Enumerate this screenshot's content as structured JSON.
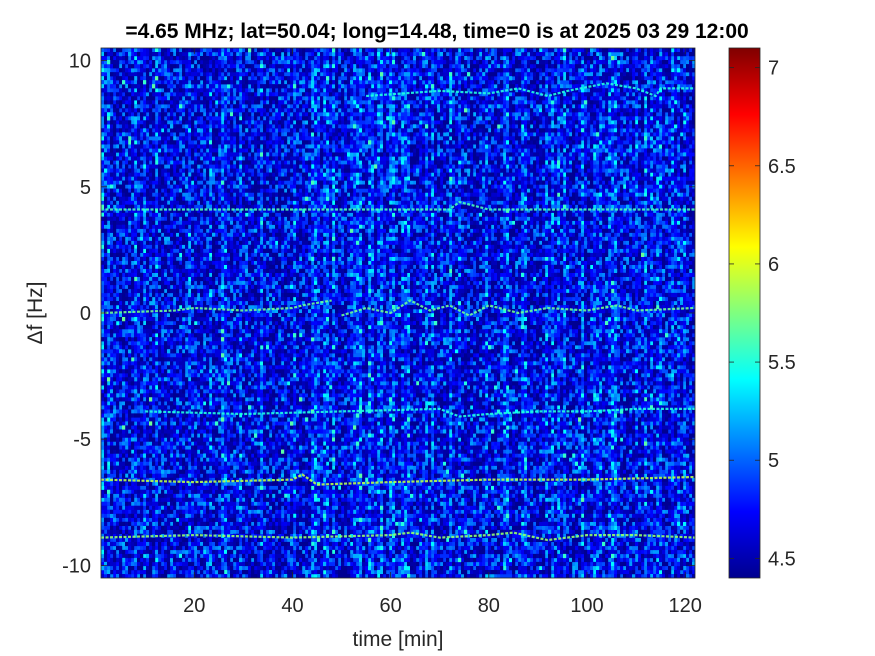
{
  "chart_data": {
    "type": "heatmap",
    "title": "=4.65 MHz;  lat=50.04; long=14.48, time=0 is at 2025 03 29 12:00",
    "xlabel": "time [min]",
    "ylabel": "Δf [Hz]",
    "xlim": [
      1,
      122
    ],
    "ylim": [
      -10.5,
      10.5
    ],
    "x_ticks": [
      {
        "value": 20,
        "label": "20"
      },
      {
        "value": 40,
        "label": "40"
      },
      {
        "value": 60,
        "label": "60"
      },
      {
        "value": 80,
        "label": "80"
      },
      {
        "value": 100,
        "label": "100"
      },
      {
        "value": 120,
        "label": "120"
      }
    ],
    "y_ticks": [
      {
        "value": 10,
        "label": "10"
      },
      {
        "value": 5,
        "label": "5"
      },
      {
        "value": 0,
        "label": "0"
      },
      {
        "value": -5,
        "label": "-5"
      },
      {
        "value": -10,
        "label": "-10"
      }
    ],
    "colorbar": {
      "colormap": "jet",
      "range": [
        4.4,
        7.1
      ],
      "ticks": [
        {
          "value": 4.5,
          "label": "4.5"
        },
        {
          "value": 5,
          "label": "5"
        },
        {
          "value": 5.5,
          "label": "5.5"
        },
        {
          "value": 6,
          "label": "6"
        },
        {
          "value": 6.5,
          "label": "6.5"
        },
        {
          "value": 7,
          "label": "7"
        }
      ]
    },
    "background_level": 4.75,
    "traces": [
      {
        "level": 5.6,
        "points": [
          [
            1,
            4.1
          ],
          [
            20,
            4.1
          ],
          [
            40,
            4.1
          ],
          [
            60,
            4.1
          ],
          [
            72,
            4.1
          ],
          [
            74,
            4.4
          ],
          [
            80,
            4.1
          ],
          [
            100,
            4.1
          ],
          [
            122,
            4.1
          ]
        ]
      },
      {
        "level": 5.5,
        "points": [
          [
            55,
            8.6
          ],
          [
            70,
            8.8
          ],
          [
            80,
            8.7
          ],
          [
            86,
            8.9
          ],
          [
            92,
            8.6
          ],
          [
            96,
            8.8
          ],
          [
            104,
            9.1
          ],
          [
            110,
            8.9
          ],
          [
            114,
            8.6
          ],
          [
            115,
            8.9
          ],
          [
            122,
            8.9
          ]
        ]
      },
      {
        "level": 5.7,
        "points": [
          [
            1,
            0
          ],
          [
            16,
            0.1
          ],
          [
            20,
            0.2
          ],
          [
            30,
            0.1
          ],
          [
            40,
            0.2
          ],
          [
            42,
            0.3
          ],
          [
            48,
            0.5
          ]
        ]
      },
      {
        "level": 5.7,
        "points": [
          [
            50,
            -0.1
          ],
          [
            55,
            0.2
          ],
          [
            60,
            0
          ],
          [
            64,
            0.5
          ],
          [
            68,
            0.1
          ],
          [
            72,
            0.3
          ],
          [
            76,
            -0.1
          ],
          [
            80,
            0.3
          ],
          [
            86,
            0
          ],
          [
            92,
            0.2
          ],
          [
            100,
            0.1
          ],
          [
            106,
            0.3
          ],
          [
            110,
            0.1
          ],
          [
            122,
            0.2
          ]
        ]
      },
      {
        "level": 5.5,
        "points": [
          [
            10,
            -3.9
          ],
          [
            30,
            -4.0
          ],
          [
            50,
            -3.9
          ],
          [
            70,
            -3.8
          ],
          [
            74,
            -4.1
          ],
          [
            80,
            -4.0
          ],
          [
            90,
            -3.9
          ],
          [
            100,
            -3.9
          ],
          [
            110,
            -3.8
          ],
          [
            122,
            -3.8
          ]
        ]
      },
      {
        "level": 5.9,
        "points": [
          [
            1,
            -6.6
          ],
          [
            20,
            -6.7
          ],
          [
            40,
            -6.6
          ],
          [
            42,
            -6.4
          ],
          [
            45,
            -6.8
          ],
          [
            60,
            -6.7
          ],
          [
            80,
            -6.6
          ],
          [
            100,
            -6.6
          ],
          [
            122,
            -6.5
          ]
        ]
      },
      {
        "level": 5.8,
        "points": [
          [
            1,
            -8.9
          ],
          [
            20,
            -8.8
          ],
          [
            40,
            -8.9
          ],
          [
            60,
            -8.8
          ],
          [
            64,
            -8.7
          ],
          [
            70,
            -8.9
          ],
          [
            80,
            -8.8
          ],
          [
            85,
            -8.7
          ],
          [
            92,
            -9.0
          ],
          [
            100,
            -8.8
          ],
          [
            110,
            -8.8
          ],
          [
            122,
            -8.9
          ]
        ]
      }
    ]
  }
}
